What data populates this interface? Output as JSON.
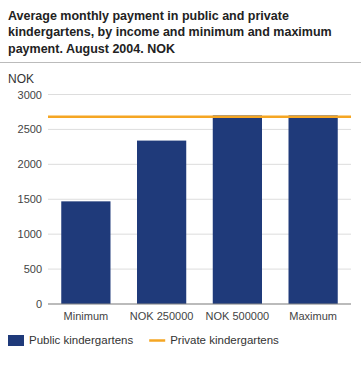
{
  "chart_data": {
    "type": "bar",
    "title": "Average monthly payment in public and private\nkindergartens, by income and minimum and maximum\npayment. August 2004. NOK",
    "ylabel": "NOK",
    "categories": [
      "Minimum",
      "NOK 250000",
      "NOK 500000",
      "Maximum"
    ],
    "series": [
      {
        "name": "Public kindergartens",
        "type": "bar",
        "color": "#1f3a7a",
        "values": [
          1470,
          2340,
          2700,
          2700
        ]
      },
      {
        "name": "Private kindergartens",
        "type": "line",
        "color": "#f5a623",
        "value": 2680
      }
    ],
    "ylim": [
      0,
      3000
    ],
    "yticks": [
      0,
      500,
      1000,
      1500,
      2000,
      2500,
      3000
    ],
    "grid": true,
    "legend": "bottom"
  }
}
